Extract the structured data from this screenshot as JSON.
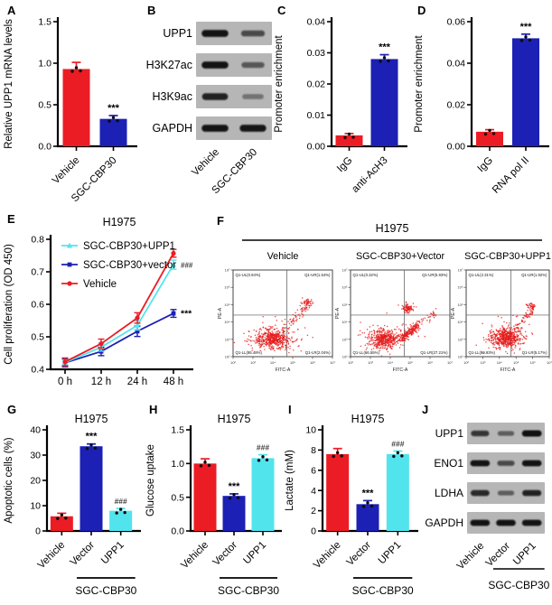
{
  "colors": {
    "red": "#ec1c24",
    "blue": "#1c20b4",
    "cyan": "#52e4ec",
    "black": "#000000",
    "hash": "#3d3d3d",
    "flow_dot": "#e51a1a",
    "blot_bg": "#b6b6b6",
    "band": "#0a0a0a"
  },
  "chart_data": [
    {
      "panel": "A",
      "type": "bar",
      "ylabel": "Relative UPP1 mRNA levels",
      "ylim": [
        0,
        1.5
      ],
      "yticks": [
        "0.0",
        "0.5",
        "1.0",
        "1.5"
      ],
      "categories": [
        "Vehicle",
        "SGC-CBP30"
      ],
      "values": [
        0.93,
        0.33
      ],
      "errors": [
        0.08,
        0.04
      ],
      "colors": [
        "red",
        "blue"
      ],
      "sig": [
        "",
        "***"
      ]
    },
    {
      "panel": "B",
      "type": "western_blot",
      "lanes": [
        "Vehicle",
        "SGC-CBP30"
      ],
      "rows": [
        {
          "label": "UPP1",
          "intensities": [
            0.95,
            0.55
          ]
        },
        {
          "label": "H3K27ac",
          "intensities": [
            0.95,
            0.45
          ]
        },
        {
          "label": "H3K9ac",
          "intensities": [
            0.85,
            0.25
          ]
        },
        {
          "label": "GAPDH",
          "intensities": [
            0.95,
            0.92
          ]
        }
      ]
    },
    {
      "panel": "C",
      "type": "bar",
      "ylabel": "Promoter enrichment",
      "ylim": [
        0,
        0.04
      ],
      "yticks": [
        "0.00",
        "0.01",
        "0.02",
        "0.03",
        "0.04"
      ],
      "categories": [
        "IgG",
        "anti-AcH3"
      ],
      "values": [
        0.0035,
        0.028
      ],
      "errors": [
        0.0006,
        0.0014
      ],
      "colors": [
        "red",
        "blue"
      ],
      "sig": [
        "",
        "***"
      ]
    },
    {
      "panel": "D",
      "type": "bar",
      "ylabel": "Promoter enrichment",
      "ylim": [
        0,
        0.06
      ],
      "yticks": [
        "0.00",
        "0.02",
        "0.04",
        "0.06"
      ],
      "categories": [
        "IgG",
        "RNA pol II"
      ],
      "values": [
        0.007,
        0.052
      ],
      "errors": [
        0.001,
        0.002
      ],
      "colors": [
        "red",
        "blue"
      ],
      "sig": [
        "",
        "***"
      ]
    },
    {
      "panel": "E",
      "type": "line",
      "title": "H1975",
      "ylabel": "Cell proliferation (OD 450)",
      "ylim": [
        0.4,
        0.8
      ],
      "yticks": [
        "0.4",
        "0.5",
        "0.6",
        "0.7",
        "0.8"
      ],
      "x_labels": [
        "0 h",
        "12 h",
        "24 h",
        "48 h"
      ],
      "series": [
        {
          "name": "SGC-CBP30+UPP1",
          "color": "cyan",
          "marker": "triangle",
          "values": [
            0.421,
            0.468,
            0.535,
            0.722
          ],
          "errors": [
            0.008,
            0.012,
            0.014,
            0.014
          ],
          "end_sig": "###"
        },
        {
          "name": "SGC-CBP30+vector",
          "color": "blue",
          "marker": "square",
          "values": [
            0.42,
            0.455,
            0.517,
            0.572
          ],
          "errors": [
            0.012,
            0.013,
            0.016,
            0.012
          ],
          "end_sig": "***"
        },
        {
          "name": "Vehicle",
          "color": "red",
          "marker": "circle",
          "values": [
            0.423,
            0.479,
            0.558,
            0.757
          ],
          "errors": [
            0.012,
            0.014,
            0.016,
            0.012
          ],
          "end_sig": ""
        }
      ]
    },
    {
      "panel": "F",
      "type": "flow_cytometry",
      "title": "H1975",
      "xlabel": "FITC-A",
      "ylabel": "PE-A",
      "axis_ticks": [
        "10²",
        "10³",
        "10⁴",
        "10⁵",
        "10⁶",
        "10⁷"
      ],
      "plots": [
        {
          "condition": "Vehicle",
          "quadrants": [
            {
              "name": "Q1-UL",
              "value": "0.94%"
            },
            {
              "name": "Q1-UR",
              "value": "1.54%"
            },
            {
              "name": "Q1-LL",
              "value": "95.48%"
            },
            {
              "name": "Q1-LR",
              "value": "2.04%"
            }
          ]
        },
        {
          "condition": "SGC-CBP30+Vector",
          "quadrants": [
            {
              "name": "Q1-UL",
              "value": "0.32%"
            },
            {
              "name": "Q1-UR",
              "value": "5.93%"
            },
            {
              "name": "Q1-LL",
              "value": "66.55%"
            },
            {
              "name": "Q1-LR",
              "value": "27.21%"
            }
          ]
        },
        {
          "condition": "SGC-CBP30+UPP1",
          "quadrants": [
            {
              "name": "Q1-UL",
              "value": "2.31%"
            },
            {
              "name": "Q1-UR",
              "value": "1.92%"
            },
            {
              "name": "Q1-LL",
              "value": "90.93%"
            },
            {
              "name": "Q1-LR",
              "value": "5.17%"
            }
          ]
        }
      ]
    },
    {
      "panel": "G",
      "type": "bar",
      "title": "H1975",
      "ylabel": "Apoptotic cells (%)",
      "ylim": [
        0,
        40
      ],
      "yticks": [
        "0",
        "10",
        "20",
        "30",
        "40"
      ],
      "categories": [
        "Vehicle",
        "Vector",
        "UPP1"
      ],
      "values": [
        5.8,
        33.5,
        8.0
      ],
      "errors": [
        1.2,
        0.9,
        0.9
      ],
      "colors": [
        "red",
        "blue",
        "cyan"
      ],
      "sig": [
        "",
        "***",
        "###"
      ],
      "group": {
        "label": "SGC-CBP30",
        "from": 1,
        "to": 2
      }
    },
    {
      "panel": "H",
      "type": "bar",
      "title": "H1975",
      "ylabel": "Glucose uptake",
      "ylim": [
        0,
        1.5
      ],
      "yticks": [
        "0.0",
        "0.5",
        "1.0",
        "1.5"
      ],
      "categories": [
        "Vehicle",
        "Vector",
        "UPP1"
      ],
      "values": [
        1.0,
        0.52,
        1.08
      ],
      "errors": [
        0.07,
        0.03,
        0.05
      ],
      "colors": [
        "red",
        "blue",
        "cyan"
      ],
      "sig": [
        "",
        "***",
        "###"
      ],
      "group": {
        "label": "SGC-CBP30",
        "from": 1,
        "to": 2
      }
    },
    {
      "panel": "I",
      "type": "bar",
      "title": "H1975",
      "ylabel": "Lactate (mM)",
      "ylim": [
        0,
        10
      ],
      "yticks": [
        "0",
        "2",
        "4",
        "6",
        "8",
        "10"
      ],
      "categories": [
        "Vehicle",
        "Vector",
        "UPP1"
      ],
      "values": [
        7.6,
        2.65,
        7.6
      ],
      "errors": [
        0.55,
        0.35,
        0.3
      ],
      "colors": [
        "red",
        "blue",
        "cyan"
      ],
      "sig": [
        "",
        "***",
        "###"
      ],
      "group": {
        "label": "SGC-CBP30",
        "from": 1,
        "to": 2
      }
    },
    {
      "panel": "J",
      "type": "western_blot",
      "lanes": [
        "Vehicle",
        "Vector",
        "UPP1"
      ],
      "rows": [
        {
          "label": "UPP1",
          "intensities": [
            0.7,
            0.4,
            0.97
          ]
        },
        {
          "label": "ENO1",
          "intensities": [
            0.95,
            0.55,
            0.95
          ]
        },
        {
          "label": "LDHA",
          "intensities": [
            0.8,
            0.4,
            0.85
          ]
        },
        {
          "label": "GAPDH",
          "intensities": [
            0.95,
            0.95,
            0.95
          ]
        }
      ],
      "group": {
        "label": "SGC-CBP30",
        "from": 1,
        "to": 2
      }
    }
  ]
}
